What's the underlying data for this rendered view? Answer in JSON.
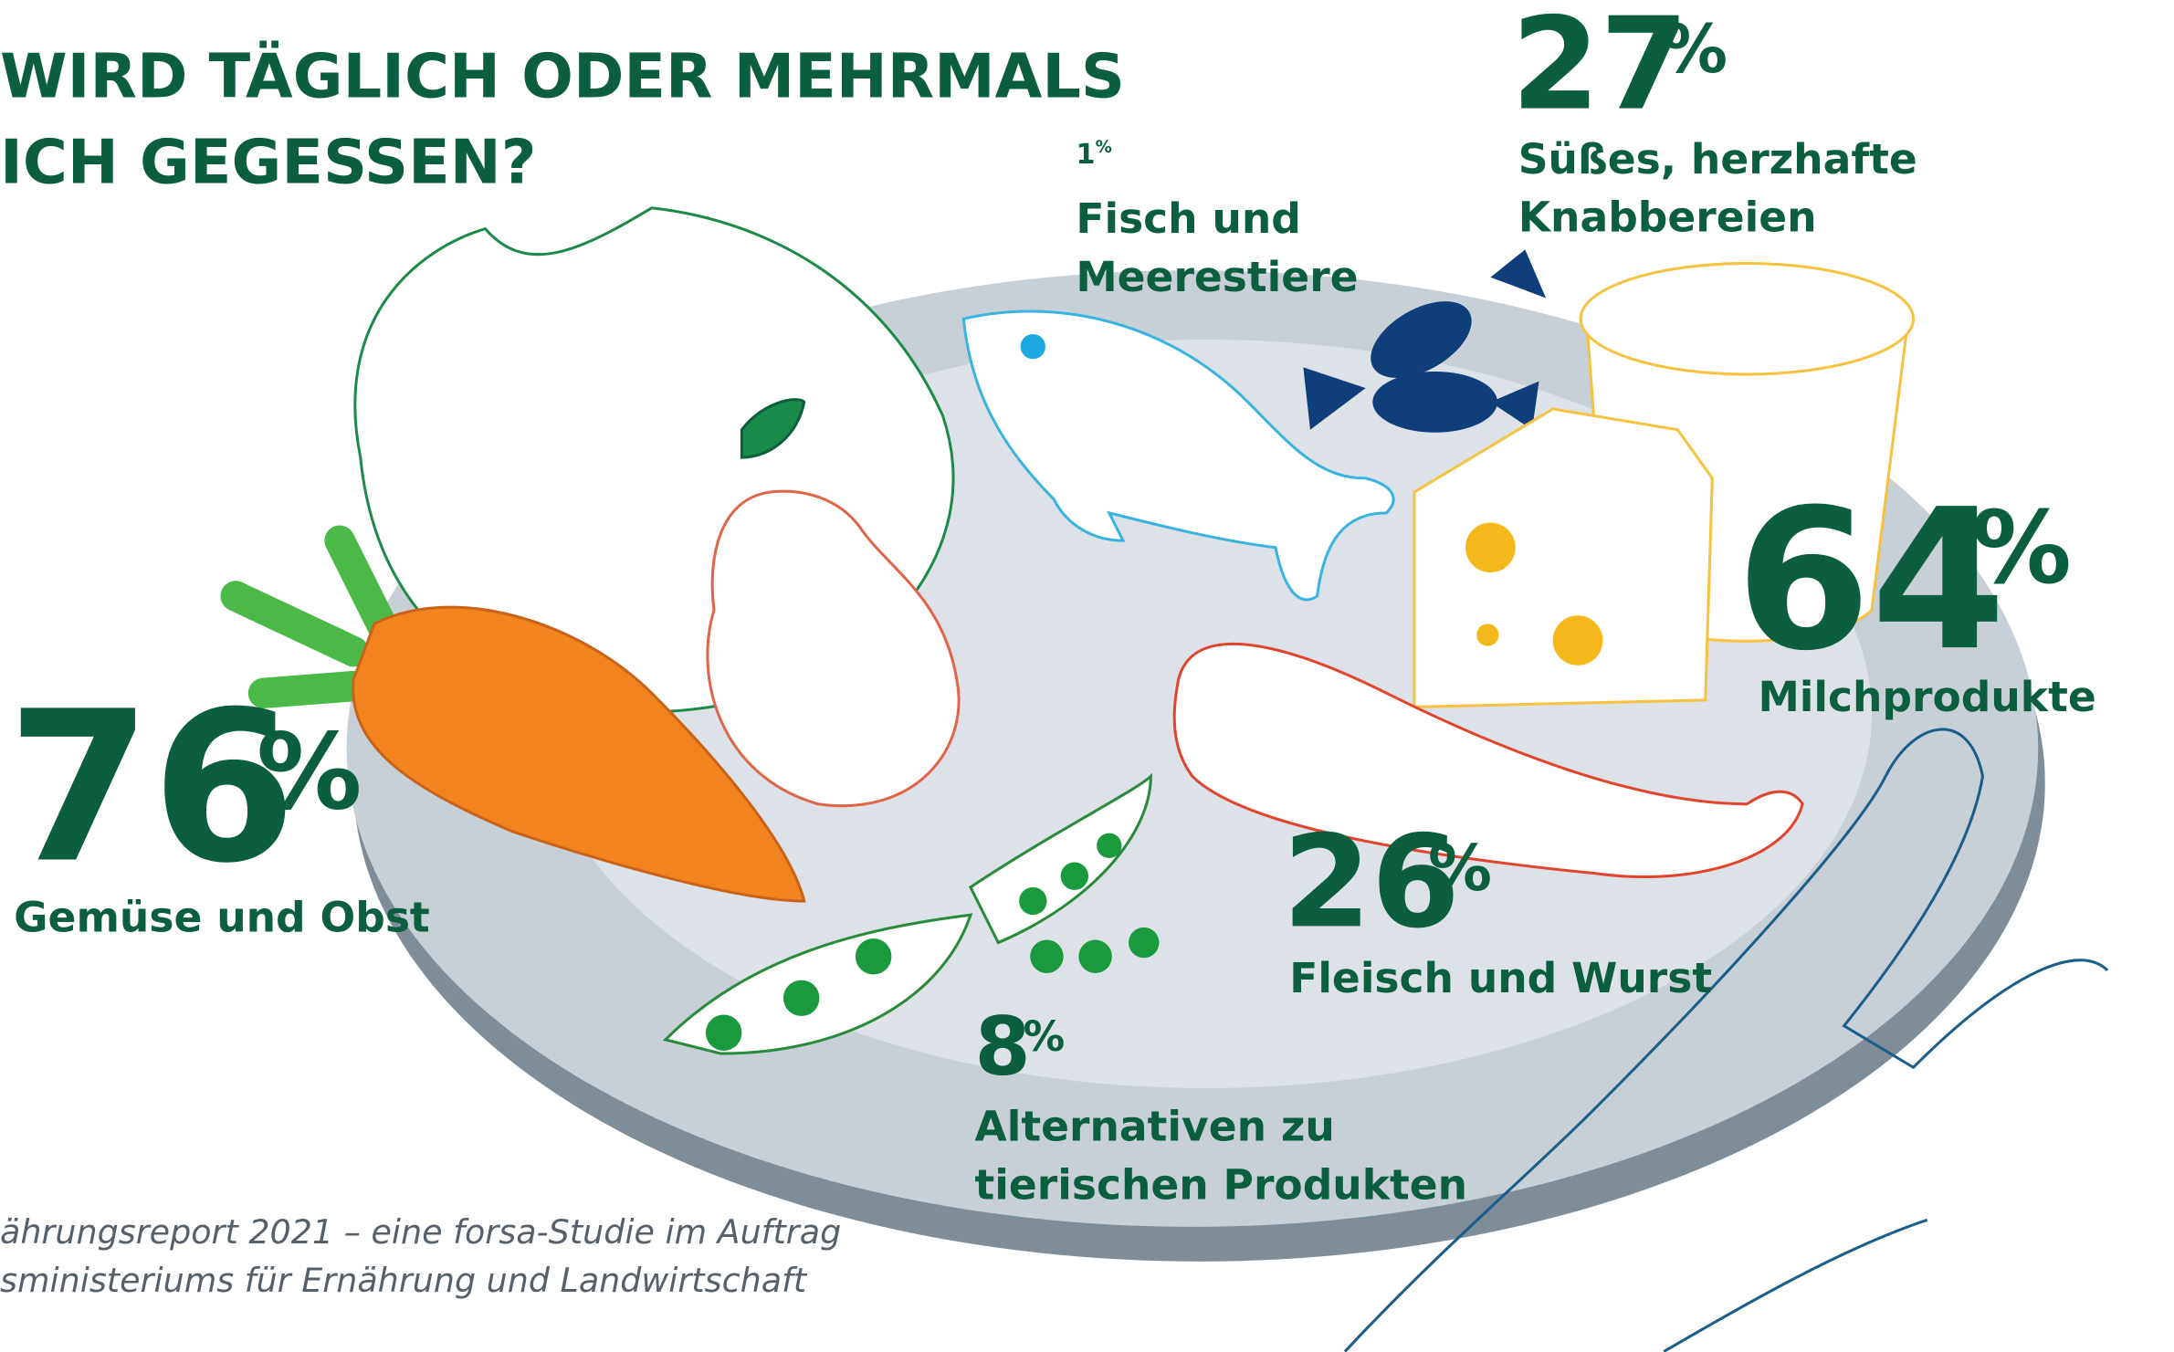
{
  "title": {
    "lines": [
      "WIRD TÄGLICH ODER MEHRMALS",
      "ICH GEGESSEN?"
    ]
  },
  "unit": "%",
  "items": [
    {
      "value": 27,
      "label": [
        "Süßes, herzhafte",
        "Knabbereien"
      ]
    },
    {
      "value": 1,
      "label": [
        "Fisch und",
        "Meerestiere"
      ]
    },
    {
      "value": 64,
      "label": [
        "Milchprodukte"
      ]
    },
    {
      "value": 76,
      "label": [
        "Gemüse und Obst"
      ]
    },
    {
      "value": 26,
      "label": [
        "Fleisch und Wurst"
      ]
    },
    {
      "value": 8,
      "label": [
        "Alternativen zu",
        "tierischen Produkten"
      ]
    }
  ],
  "source": {
    "lines": [
      "ährungsreport 2021 – eine forsa-Studie im Auftrag",
      "sministeriums für Ernährung und Landwirtschaft"
    ]
  }
}
